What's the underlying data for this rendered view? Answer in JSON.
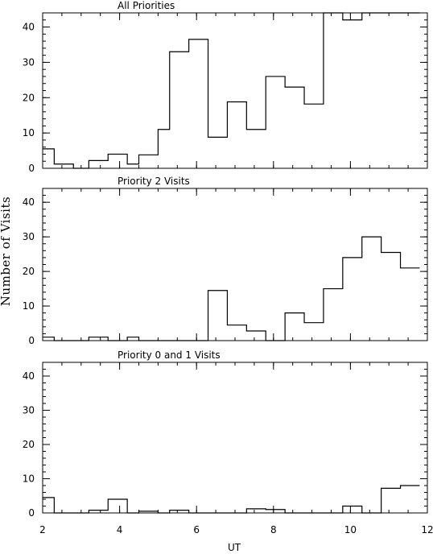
{
  "figure": {
    "ylabel": "Number of Visits",
    "xlabel": "UT"
  },
  "chart_data": [
    {
      "type": "histogram-step",
      "title": "All Priorities",
      "xlim": [
        2,
        12
      ],
      "ylim": [
        0,
        44
      ],
      "xticks": [
        2,
        4,
        6,
        8,
        10,
        12
      ],
      "yticks": [
        0,
        10,
        20,
        30,
        40
      ],
      "bin_edges": [
        2.0,
        2.3,
        2.8,
        3.2,
        3.7,
        4.2,
        4.5,
        5.0,
        5.3,
        5.8,
        6.3,
        6.8,
        7.3,
        7.8,
        8.3,
        8.8,
        9.3,
        9.8,
        10.3,
        10.8,
        11.3,
        11.8
      ],
      "values": [
        5.5,
        1.2,
        0,
        2.2,
        4.0,
        1.2,
        3.8,
        11,
        33,
        36.5,
        8.8,
        18.8,
        11,
        26,
        23,
        18.2,
        44,
        42,
        44,
        44,
        44
      ],
      "show_xtick_labels": false
    },
    {
      "type": "histogram-step",
      "title": "Priority 2 Visits",
      "xlim": [
        2,
        12
      ],
      "ylim": [
        0,
        44
      ],
      "xticks": [
        2,
        4,
        6,
        8,
        10,
        12
      ],
      "yticks": [
        0,
        10,
        20,
        30,
        40
      ],
      "bin_edges": [
        2.0,
        2.3,
        2.8,
        3.2,
        3.7,
        4.2,
        4.5,
        5.0,
        5.3,
        5.8,
        6.3,
        6.8,
        7.3,
        7.8,
        8.3,
        8.8,
        9.3,
        9.8,
        10.3,
        10.8,
        11.3,
        11.8
      ],
      "values": [
        1.0,
        0,
        0,
        1.0,
        0,
        1.0,
        0,
        0,
        0,
        0,
        14.5,
        4.5,
        2.8,
        0,
        8,
        5.2,
        15,
        24,
        30,
        25.5,
        21
      ],
      "show_xtick_labels": false
    },
    {
      "type": "histogram-step",
      "title": "Priority 0 and 1 Visits",
      "xlim": [
        2,
        12
      ],
      "ylim": [
        0,
        44
      ],
      "xticks": [
        2,
        4,
        6,
        8,
        10,
        12
      ],
      "yticks": [
        0,
        10,
        20,
        30,
        40
      ],
      "bin_edges": [
        2.0,
        2.3,
        2.8,
        3.2,
        3.7,
        4.2,
        4.5,
        5.0,
        5.3,
        5.8,
        6.3,
        6.8,
        7.3,
        7.8,
        8.3,
        8.8,
        9.3,
        9.8,
        10.3,
        10.8,
        11.3,
        11.8
      ],
      "values": [
        4.5,
        0,
        0,
        0.8,
        4.0,
        0,
        0.5,
        0,
        0.8,
        0,
        0,
        0,
        1.2,
        1.0,
        0,
        0,
        0,
        2.0,
        0,
        7.2,
        8.0
      ],
      "show_xtick_labels": true
    }
  ]
}
